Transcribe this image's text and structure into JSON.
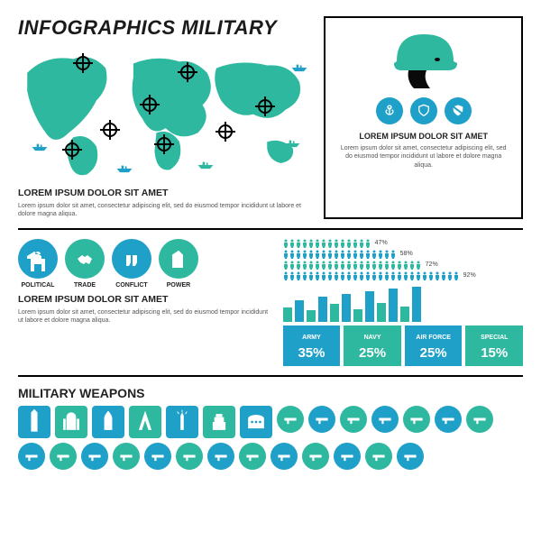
{
  "colors": {
    "teal": "#2fb8a0",
    "blue": "#1fa0c9",
    "dkblue": "#0d7fa8",
    "black": "#0a0a0a",
    "grey": "#555",
    "white": "#ffffff"
  },
  "title": "INFOGRAPHICS MILITARY",
  "map": {
    "targets": [
      [
        64,
        12
      ],
      [
        180,
        22
      ],
      [
        138,
        58
      ],
      [
        94,
        86
      ],
      [
        52,
        108
      ],
      [
        154,
        102
      ],
      [
        222,
        88
      ],
      [
        266,
        60
      ]
    ],
    "ships": [
      [
        6,
        44,
        "teal"
      ],
      [
        12,
        108,
        "blue"
      ],
      [
        106,
        132,
        "blue"
      ],
      [
        196,
        128,
        "teal"
      ],
      [
        252,
        38,
        "teal"
      ],
      [
        292,
        104,
        "teal"
      ],
      [
        300,
        20,
        "blue"
      ]
    ],
    "subtitle": "LOREM IPSUM DOLOR SIT AMET",
    "body": "Lorem ipsum dolor sit amet, consectetur adipiscing elit, sed do eiusmod tempor incididunt ut labore et dolore magna aliqua."
  },
  "helmet": {
    "icons": [
      "anchor",
      "shield",
      "badge"
    ],
    "subtitle": "LOREM IPSUM DOLOR SIT AMET",
    "body": "Lorem ipsum dolor sit amet, consectetur adipiscing elit, sed do eiusmod tempor incididunt ut labore et dolore magna aliqua."
  },
  "categories": [
    {
      "label": "POLITICAL",
      "color": "blue",
      "icon": "capitol"
    },
    {
      "label": "TRADE",
      "color": "teal",
      "icon": "handshake"
    },
    {
      "label": "CONFLICT",
      "color": "blue",
      "icon": "fists"
    },
    {
      "label": "POWER",
      "color": "teal",
      "icon": "oil"
    }
  ],
  "cat_subtitle": "LOREM IPSUM DOLOR SIT AMET",
  "cat_body": "Lorem ipsum dolor sit amet, consectetur adipiscing elit, sed do eiusmod tempor incididunt ut labore et dolore magna aliqua.",
  "people_chart": {
    "rows": [
      {
        "count": 14,
        "pct": "47%",
        "color": "teal"
      },
      {
        "count": 18,
        "pct": "58%",
        "color": "blue"
      },
      {
        "count": 22,
        "pct": "72%",
        "color": "teal"
      },
      {
        "count": 28,
        "pct": "92%",
        "color": "blue"
      }
    ]
  },
  "bar_chart": {
    "values": [
      22,
      34,
      18,
      40,
      28,
      44,
      20,
      48,
      30,
      52,
      24,
      56
    ],
    "max": 60,
    "colors": [
      "teal",
      "blue",
      "teal",
      "blue",
      "teal",
      "blue",
      "teal",
      "blue",
      "teal",
      "blue",
      "teal",
      "blue"
    ]
  },
  "forces": [
    {
      "label": "ARMY",
      "value": "35%",
      "color": "blue"
    },
    {
      "label": "NAVY",
      "value": "25%",
      "color": "teal"
    },
    {
      "label": "AIR FORCE",
      "value": "25%",
      "color": "blue"
    },
    {
      "label": "SPECIAL",
      "value": "15%",
      "color": "teal"
    }
  ],
  "weapons": {
    "title": "MILITARY WEAPONS",
    "landmarks": [
      {
        "color": "blue",
        "icon": "bigben"
      },
      {
        "color": "teal",
        "icon": "taj"
      },
      {
        "color": "blue",
        "icon": "kremlin"
      },
      {
        "color": "teal",
        "icon": "eiffel"
      },
      {
        "color": "blue",
        "icon": "liberty"
      },
      {
        "color": "teal",
        "icon": "temple"
      },
      {
        "color": "blue",
        "icon": "colosseum"
      }
    ],
    "arms": [
      {
        "color": "teal",
        "icon": "rifle"
      },
      {
        "color": "blue",
        "icon": "pistol"
      },
      {
        "color": "teal",
        "icon": "ak"
      },
      {
        "color": "blue",
        "icon": "bullets"
      },
      {
        "color": "teal",
        "icon": "grenade"
      },
      {
        "color": "blue",
        "icon": "knife"
      },
      {
        "color": "teal",
        "icon": "plane"
      },
      {
        "color": "blue",
        "icon": "drone"
      },
      {
        "color": "teal",
        "icon": "jet"
      },
      {
        "color": "blue",
        "icon": "heli"
      },
      {
        "color": "teal",
        "icon": "sub"
      },
      {
        "color": "blue",
        "icon": "tank"
      },
      {
        "color": "teal",
        "icon": "jeep"
      },
      {
        "color": "blue",
        "icon": "apc"
      },
      {
        "color": "teal",
        "icon": "truck"
      },
      {
        "color": "blue",
        "icon": "missile"
      },
      {
        "color": "teal",
        "icon": "radar"
      },
      {
        "color": "blue",
        "icon": "carrier"
      },
      {
        "color": "teal",
        "icon": "boat"
      },
      {
        "color": "blue",
        "icon": "para"
      }
    ]
  }
}
